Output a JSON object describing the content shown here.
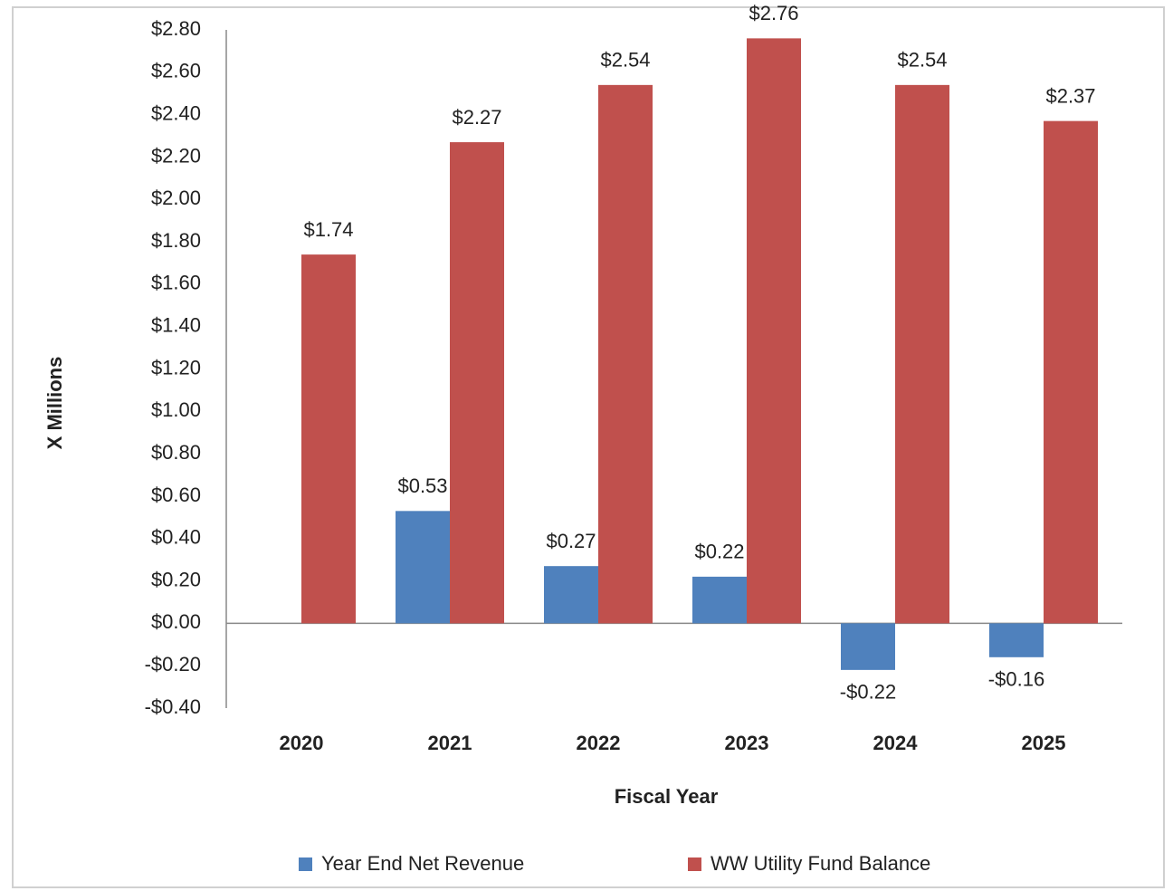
{
  "chart_data": {
    "type": "bar",
    "x_label": "Fiscal Year",
    "y_label": "X Millions",
    "categories": [
      "2020",
      "2021",
      "2022",
      "2023",
      "2024",
      "2025"
    ],
    "series": [
      {
        "name": "Year End Net Revenue",
        "color": "#4f81bd",
        "values": [
          null,
          0.53,
          0.27,
          0.22,
          -0.22,
          -0.16
        ],
        "value_labels": [
          null,
          "$0.53",
          "$0.27",
          "$0.22",
          "-$0.22",
          "-$0.16"
        ]
      },
      {
        "name": "WW Utility Fund Balance",
        "color": "#c0504d",
        "values": [
          1.74,
          2.27,
          2.54,
          2.76,
          2.54,
          2.37
        ],
        "value_labels": [
          "$1.74",
          "$2.27",
          "$2.54",
          "$2.76",
          "$2.54",
          "$2.37"
        ]
      }
    ],
    "ylim": [
      -0.4,
      2.8
    ],
    "yticks": [
      {
        "value": -0.4,
        "label": "-$0.40"
      },
      {
        "value": -0.2,
        "label": "-$0.20"
      },
      {
        "value": 0,
        "label": "$0.00"
      },
      {
        "value": 0.2,
        "label": "$0.20"
      },
      {
        "value": 0.4,
        "label": "$0.40"
      },
      {
        "value": 0.6,
        "label": "$0.60"
      },
      {
        "value": 0.8,
        "label": "$0.80"
      },
      {
        "value": 1.0,
        "label": "$1.00"
      },
      {
        "value": 1.2,
        "label": "$1.20"
      },
      {
        "value": 1.4,
        "label": "$1.40"
      },
      {
        "value": 1.6,
        "label": "$1.60"
      },
      {
        "value": 1.8,
        "label": "$1.80"
      },
      {
        "value": 2.0,
        "label": "$2.00"
      },
      {
        "value": 2.2,
        "label": "$2.20"
      },
      {
        "value": 2.4,
        "label": "$2.40"
      },
      {
        "value": 2.6,
        "label": "$2.60"
      },
      {
        "value": 2.8,
        "label": "$2.80"
      }
    ],
    "grid": false,
    "legend": "bottom"
  }
}
